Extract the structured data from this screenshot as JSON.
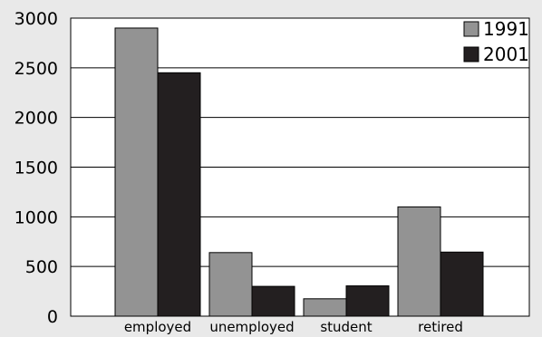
{
  "chart_data": {
    "type": "bar",
    "title": "",
    "xlabel": "",
    "ylabel": "",
    "categories": [
      "employed",
      "unemployed",
      "student",
      "retired"
    ],
    "series": [
      {
        "name": "1991",
        "values": [
          2900,
          640,
          175,
          1100
        ],
        "color": "#939393"
      },
      {
        "name": "2001",
        "values": [
          2450,
          300,
          305,
          645
        ],
        "color": "#231f20"
      }
    ],
    "ylim": [
      0,
      3000
    ],
    "yticks": [
      0,
      500,
      1000,
      1500,
      2000,
      2500,
      3000
    ],
    "grid": true,
    "legend_position": "top-right"
  }
}
